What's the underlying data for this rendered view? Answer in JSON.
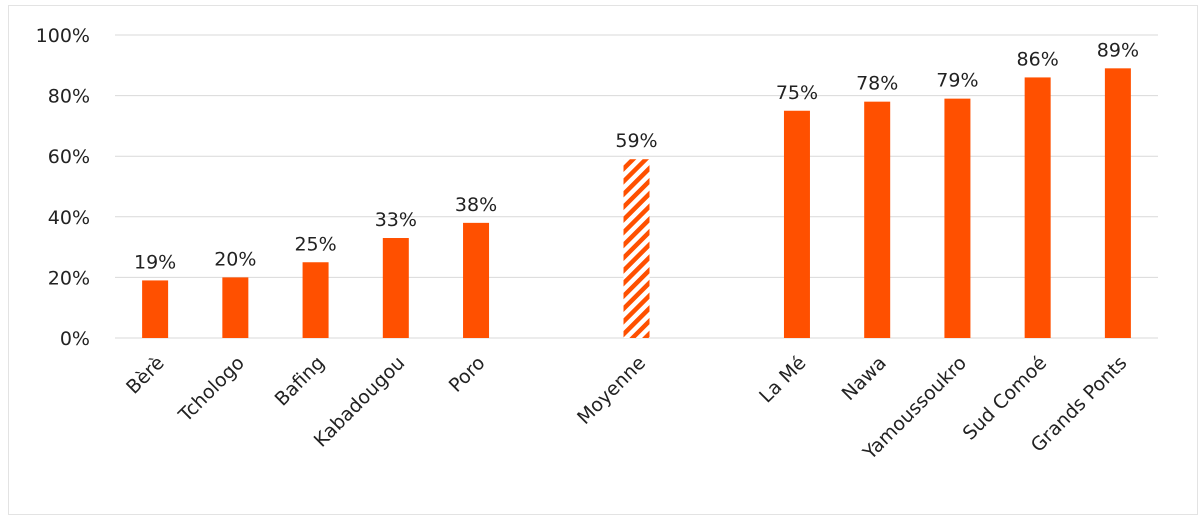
{
  "chart_data": {
    "type": "bar",
    "categories": [
      "Bèrè",
      "Tchologo",
      "Bafing",
      "Kabadougou",
      "Poro",
      "",
      "Moyenne",
      "",
      "La Mé",
      "Nawa",
      "Yamoussoukro",
      "Sud Comoé",
      "Grands Ponts"
    ],
    "values": [
      19,
      20,
      25,
      33,
      38,
      null,
      59,
      null,
      75,
      78,
      79,
      86,
      89
    ],
    "data_labels": [
      "19%",
      "20%",
      "25%",
      "33%",
      "38%",
      "",
      "59%",
      "",
      "75%",
      "78%",
      "79%",
      "86%",
      "89%"
    ],
    "patterned": [
      false,
      false,
      false,
      false,
      false,
      false,
      true,
      false,
      false,
      false,
      false,
      false,
      false
    ],
    "y_ticks": [
      "0%",
      "20%",
      "40%",
      "60%",
      "80%",
      "100%"
    ],
    "ylim": [
      0,
      100
    ],
    "grid": true,
    "title": "",
    "xlabel": "",
    "ylabel": "",
    "bar_color": "#ff5000",
    "pattern_color": "#ff5000",
    "grid_color": "#d9d9d9"
  }
}
